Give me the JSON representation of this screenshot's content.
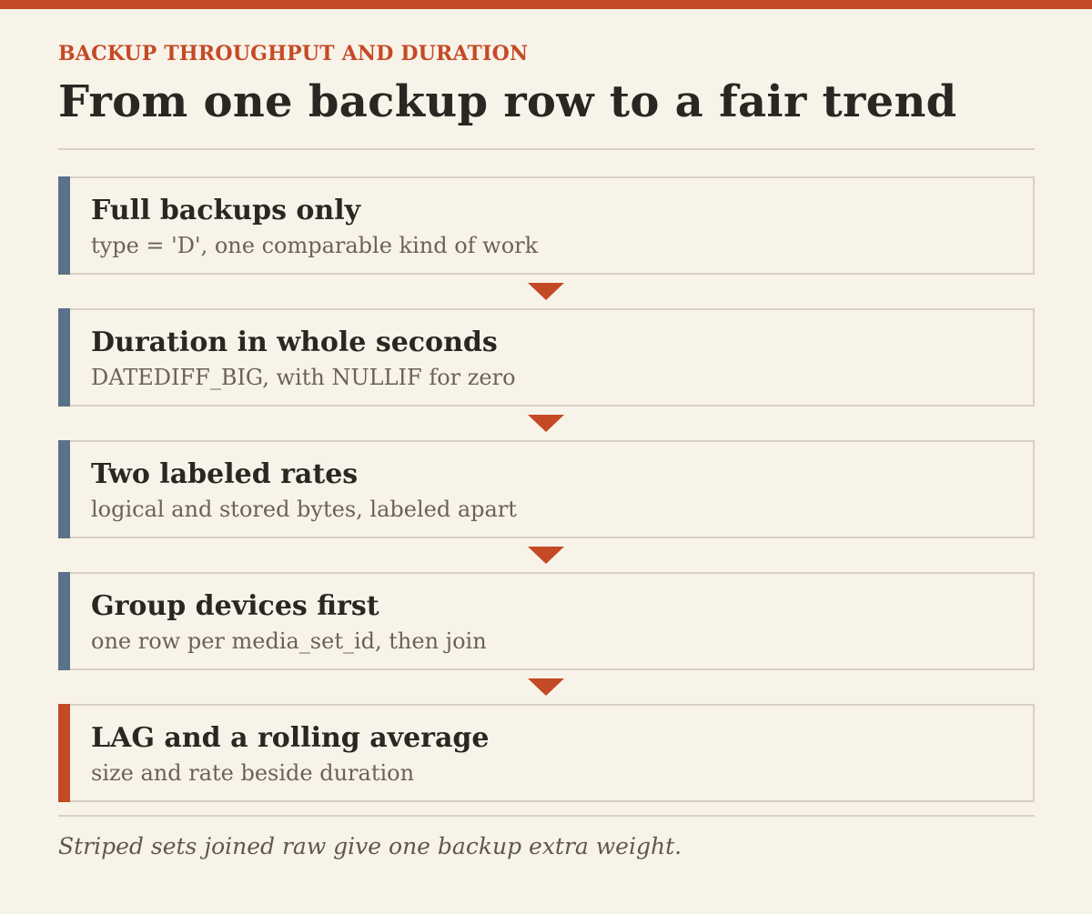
{
  "eyebrow": "BACKUP THROUGHPUT AND DURATION",
  "title": "From one backup row to a fair trend",
  "steps": [
    {
      "title": "Full backups only",
      "subtitle": "type = 'D', one comparable kind of work"
    },
    {
      "title": "Duration in whole seconds",
      "subtitle": "DATEDIFF_BIG, with NULLIF for zero"
    },
    {
      "title": "Two labeled rates",
      "subtitle": "logical and stored bytes, labeled apart"
    },
    {
      "title": "Group devices first",
      "subtitle": "one row per media_set_id, then join"
    },
    {
      "title": "LAG and a rolling average",
      "subtitle": "size and rate beside duration"
    }
  ],
  "footnote": "Striped sets joined raw give one backup extra weight.",
  "colors": {
    "accent_red": "#c44a26",
    "accent_slate": "#5a718a",
    "background": "#f8f3e9",
    "border": "#d8d0c3"
  }
}
